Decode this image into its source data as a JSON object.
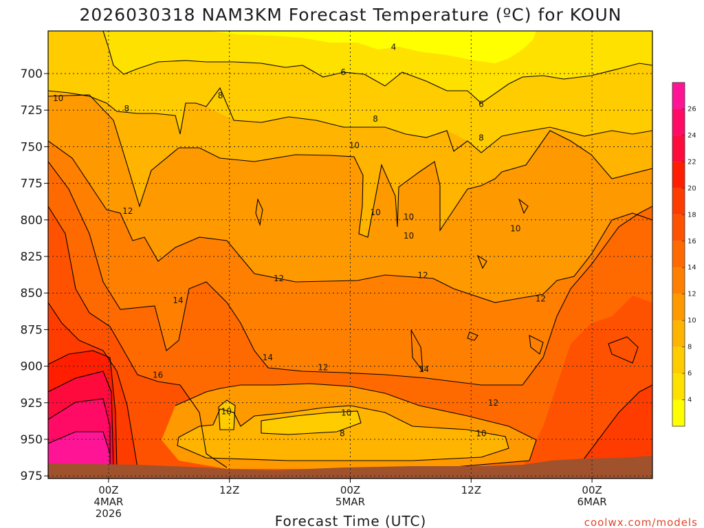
{
  "title": "2026030318 NAM3KM Forecast Temperature (ºC) for KOUN",
  "xlabel": "Forecast Time (UTC)",
  "credit": "coolwx.com/models",
  "colors": {
    "bands": [
      "#ffff00",
      "#ffe100",
      "#ffcc00",
      "#ffb400",
      "#ff9900",
      "#ff8000",
      "#ff6a00",
      "#ff5200",
      "#ff3c00",
      "#ff1e00",
      "#ff0a3c",
      "#ff0a64",
      "#ff1496"
    ],
    "ground": "#a0522d",
    "contour": "#000000",
    "credit": "#e0442a"
  },
  "chart_data": {
    "type": "heatmap",
    "title": "2026030318 NAM3KM Forecast Temperature (ºC) for KOUN",
    "xlabel": "Forecast Time (UTC)",
    "ylabel": "",
    "y_axis": {
      "ticks": [
        700,
        725,
        750,
        775,
        800,
        825,
        850,
        875,
        900,
        925,
        950,
        975
      ],
      "range": [
        975,
        675
      ],
      "inverted": true
    },
    "x_axis": {
      "range_hours": [
        -6,
        54
      ],
      "ticks": [
        {
          "hour": 0,
          "label": "00Z",
          "label2": "4MAR",
          "label3": "2026"
        },
        {
          "hour": 12,
          "label": "12Z",
          "label2": "",
          "label3": ""
        },
        {
          "hour": 24,
          "label": "00Z",
          "label2": "5MAR",
          "label3": ""
        },
        {
          "hour": 36,
          "label": "12Z",
          "label2": "",
          "label3": ""
        },
        {
          "hour": 48,
          "label": "00Z",
          "label2": "6MAR",
          "label3": ""
        }
      ]
    },
    "grid": true,
    "colorbar": {
      "levels": [
        4,
        6,
        8,
        10,
        12,
        14,
        16,
        18,
        20,
        22,
        24,
        26
      ],
      "min": 2,
      "max": 28,
      "placement": "right"
    },
    "contour_labels": [
      {
        "value": "4",
        "hour": 28.3,
        "p": 682
      },
      {
        "value": "6",
        "hour": 23.3,
        "p": 699
      },
      {
        "value": "6",
        "hour": 37.0,
        "p": 721
      },
      {
        "value": "8",
        "hour": 11.1,
        "p": 715
      },
      {
        "value": "8",
        "hour": 1.8,
        "p": 724
      },
      {
        "value": "8",
        "hour": 26.5,
        "p": 731
      },
      {
        "value": "8",
        "hour": 37.0,
        "p": 744
      },
      {
        "value": "10",
        "hour": -5.0,
        "p": 717
      },
      {
        "value": "10",
        "hour": 24.4,
        "p": 749
      },
      {
        "value": "10",
        "hour": 26.5,
        "p": 795
      },
      {
        "value": "10",
        "hour": 29.8,
        "p": 798
      },
      {
        "value": "10",
        "hour": 29.8,
        "p": 811
      },
      {
        "value": "10",
        "hour": 40.4,
        "p": 806
      },
      {
        "value": "10",
        "hour": 11.7,
        "p": 931
      },
      {
        "value": "10",
        "hour": 23.6,
        "p": 932
      },
      {
        "value": "10",
        "hour": 37.0,
        "p": 946
      },
      {
        "value": "8",
        "hour": 23.2,
        "p": 946
      },
      {
        "value": "12",
        "hour": 1.9,
        "p": 794
      },
      {
        "value": "12",
        "hour": 16.9,
        "p": 840
      },
      {
        "value": "12",
        "hour": 31.2,
        "p": 838
      },
      {
        "value": "12",
        "hour": 42.9,
        "p": 854
      },
      {
        "value": "12",
        "hour": 21.3,
        "p": 901
      },
      {
        "value": "12",
        "hour": 38.2,
        "p": 925
      },
      {
        "value": "14",
        "hour": 6.9,
        "p": 855
      },
      {
        "value": "14",
        "hour": 15.8,
        "p": 894
      },
      {
        "value": "14",
        "hour": 31.3,
        "p": 902
      },
      {
        "value": "16",
        "hour": 4.9,
        "p": 906
      }
    ]
  }
}
